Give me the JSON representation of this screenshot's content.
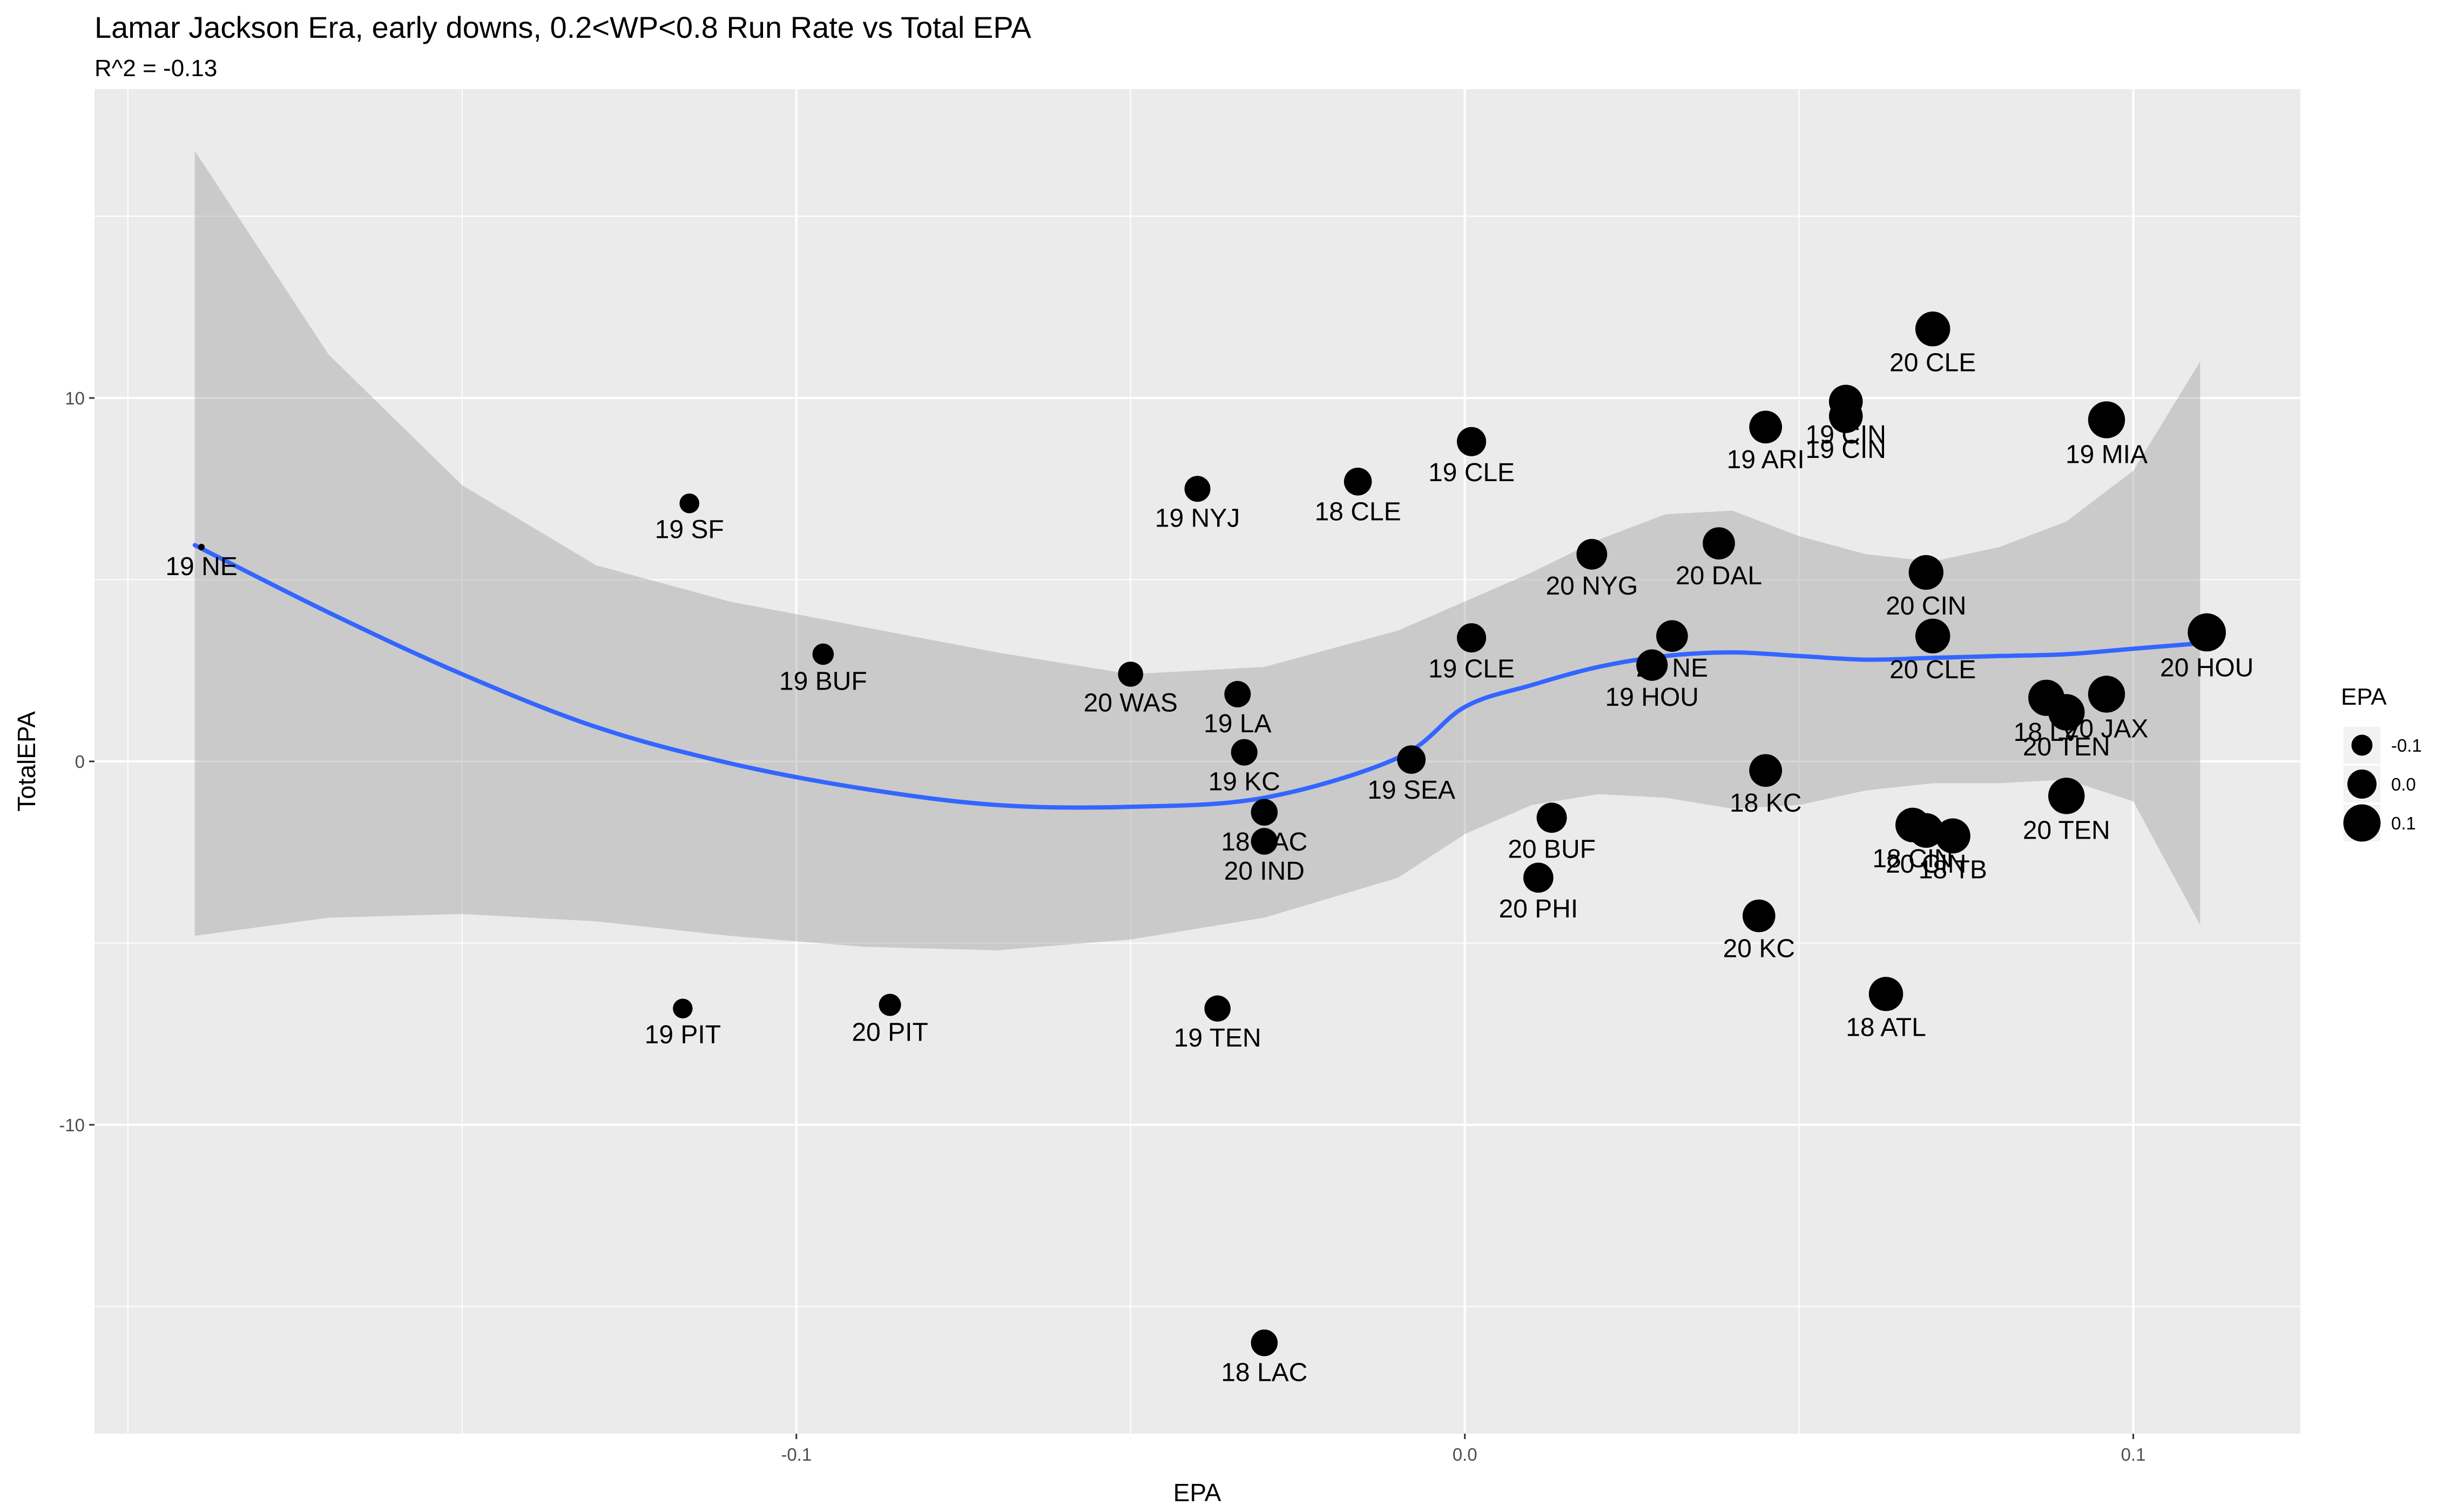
{
  "chart_data": {
    "type": "scatter",
    "title": "Lamar Jackson Era, early downs, 0.2<WP<0.8 Run Rate vs Total EPA",
    "subtitle": "R^2 = -0.13",
    "xlabel": "EPA",
    "ylabel": "TotalEPA",
    "xlim": [
      -0.205,
      0.125
    ],
    "ylim": [
      -18.5,
      18.5
    ],
    "x_ticks": [
      -0.1,
      0.0,
      0.1
    ],
    "x_tick_labels": [
      "-0.1",
      "0.0",
      "0.1"
    ],
    "y_ticks": [
      -10,
      0,
      10
    ],
    "y_tick_labels": [
      "-10",
      "0",
      "10"
    ],
    "grid": true,
    "legend": {
      "title": "EPA",
      "placement": "right",
      "entries": [
        {
          "label": "-0.1",
          "value": -0.1
        },
        {
          "label": "0.0",
          "value": 0.0
        },
        {
          "label": "0.1",
          "value": 0.1
        }
      ]
    },
    "colors": {
      "panel": "#ebebeb",
      "grid": "#ffffff",
      "point": "#000000",
      "smooth": "#3366ff",
      "band": "#999999"
    },
    "points": [
      {
        "label": "19 NE",
        "x": -0.189,
        "y": 5.9
      },
      {
        "label": "19 SF",
        "x": -0.116,
        "y": 7.1
      },
      {
        "label": "19 BUF",
        "x": -0.096,
        "y": 2.95
      },
      {
        "label": "19 PIT",
        "x": -0.117,
        "y": -6.8
      },
      {
        "label": "20 PIT",
        "x": -0.086,
        "y": -6.7
      },
      {
        "label": "20 WAS",
        "x": -0.05,
        "y": 2.4
      },
      {
        "label": "19 NYJ",
        "x": -0.04,
        "y": 7.5
      },
      {
        "label": "19 LA",
        "x": -0.034,
        "y": 1.85
      },
      {
        "label": "19 KC",
        "x": -0.033,
        "y": 0.25
      },
      {
        "label": "18 LAC",
        "x": -0.03,
        "y": -1.4
      },
      {
        "label": "20 IND",
        "x": -0.03,
        "y": -2.2
      },
      {
        "label": "19 TEN",
        "x": -0.037,
        "y": -6.8
      },
      {
        "label": "18 LAC",
        "x": -0.03,
        "y": -16.0
      },
      {
        "label": "18 CLE",
        "x": -0.016,
        "y": 7.7
      },
      {
        "label": "19 SEA",
        "x": -0.008,
        "y": 0.05
      },
      {
        "label": "19 CLE",
        "x": 0.001,
        "y": 8.8
      },
      {
        "label": "19 CLE",
        "x": 0.001,
        "y": 3.4
      },
      {
        "label": "20 PHI",
        "x": 0.011,
        "y": -3.2
      },
      {
        "label": "20 BUF",
        "x": 0.013,
        "y": -1.55
      },
      {
        "label": "20 NYG",
        "x": 0.019,
        "y": 5.7
      },
      {
        "label": "20 NE",
        "x": 0.031,
        "y": 3.45
      },
      {
        "label": "19 HOU",
        "x": 0.028,
        "y": 2.65
      },
      {
        "label": "20 DAL",
        "x": 0.038,
        "y": 6.0
      },
      {
        "label": "19 ARI",
        "x": 0.045,
        "y": 9.2
      },
      {
        "label": "18 KC",
        "x": 0.045,
        "y": -0.25
      },
      {
        "label": "20 KC",
        "x": 0.044,
        "y": -4.25
      },
      {
        "label": "19 CIN",
        "x": 0.057,
        "y": 9.9
      },
      {
        "label": "19 CIN",
        "x": 0.057,
        "y": 9.5
      },
      {
        "label": "20 CLE",
        "x": 0.07,
        "y": 11.9
      },
      {
        "label": "20 CIN",
        "x": 0.069,
        "y": 5.2
      },
      {
        "label": "20 CLE",
        "x": 0.07,
        "y": 3.45
      },
      {
        "label": "18 ATL",
        "x": 0.063,
        "y": -6.4
      },
      {
        "label": "18 CIN",
        "x": 0.067,
        "y": -1.75
      },
      {
        "label": "20 CIN",
        "x": 0.069,
        "y": -1.9
      },
      {
        "label": "18 TB",
        "x": 0.073,
        "y": -2.05
      },
      {
        "label": "19 MIA",
        "x": 0.096,
        "y": 9.4
      },
      {
        "label": "18 LV",
        "x": 0.087,
        "y": 1.75
      },
      {
        "label": "20 TEN",
        "x": 0.09,
        "y": 1.35
      },
      {
        "label": "20 JAX",
        "x": 0.096,
        "y": 1.85
      },
      {
        "label": "20 TEN",
        "x": 0.09,
        "y": -0.95
      },
      {
        "label": "20 HOU",
        "x": 0.111,
        "y": 3.55
      }
    ],
    "smooth_line": {
      "x": [
        -0.19,
        -0.17,
        -0.15,
        -0.13,
        -0.11,
        -0.09,
        -0.07,
        -0.05,
        -0.03,
        -0.01,
        0.0,
        0.01,
        0.02,
        0.03,
        0.04,
        0.05,
        0.06,
        0.07,
        0.08,
        0.09,
        0.1,
        0.11
      ],
      "y": [
        5.95,
        4.1,
        2.4,
        0.95,
        -0.05,
        -0.75,
        -1.2,
        -1.25,
        -1.0,
        0.1,
        1.5,
        2.1,
        2.6,
        2.9,
        3.0,
        2.9,
        2.8,
        2.85,
        2.9,
        2.95,
        3.1,
        3.25
      ]
    },
    "confidence_band": {
      "x": [
        -0.19,
        -0.17,
        -0.15,
        -0.13,
        -0.11,
        -0.09,
        -0.07,
        -0.05,
        -0.03,
        -0.01,
        0.0,
        0.01,
        0.02,
        0.03,
        0.04,
        0.05,
        0.06,
        0.07,
        0.08,
        0.09,
        0.1,
        0.11
      ],
      "upper": [
        16.8,
        11.2,
        7.6,
        5.4,
        4.4,
        3.7,
        3.0,
        2.4,
        2.6,
        3.6,
        4.4,
        5.2,
        6.1,
        6.8,
        6.9,
        6.2,
        5.7,
        5.5,
        5.9,
        6.6,
        8.0,
        11.0
      ],
      "lower": [
        -4.8,
        -4.3,
        -4.2,
        -4.4,
        -4.8,
        -5.1,
        -5.2,
        -4.9,
        -4.3,
        -3.2,
        -2.0,
        -1.2,
        -0.9,
        -1.0,
        -1.3,
        -1.2,
        -0.8,
        -0.6,
        -0.6,
        -0.5,
        -1.1,
        -4.5
      ]
    }
  }
}
